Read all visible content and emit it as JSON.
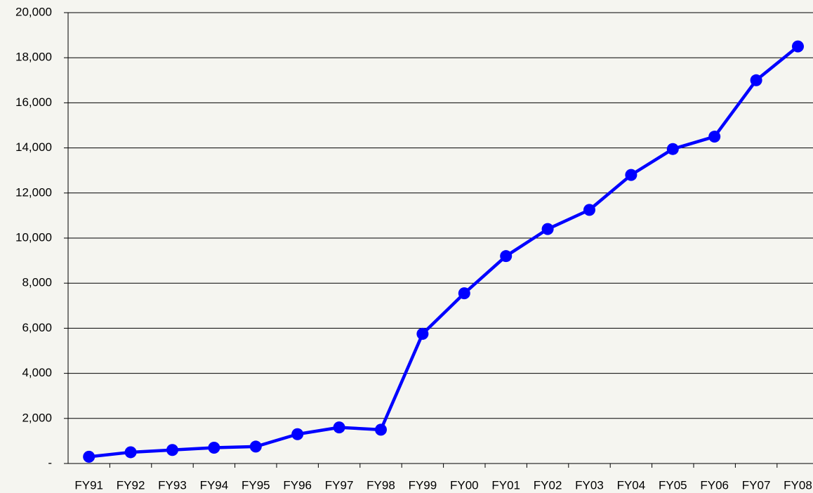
{
  "chart_data": {
    "type": "line",
    "categories": [
      "FY91",
      "FY92",
      "FY93",
      "FY94",
      "FY95",
      "FY96",
      "FY97",
      "FY98",
      "FY99",
      "FY00",
      "FY01",
      "FY02",
      "FY03",
      "FY04",
      "FY05",
      "FY06",
      "FY07",
      "FY08"
    ],
    "values": [
      300,
      500,
      600,
      700,
      750,
      1300,
      1600,
      1500,
      5750,
      7550,
      9200,
      10400,
      11250,
      12800,
      13950,
      14500,
      17000,
      18500
    ],
    "color": "#0000ff",
    "ylim": [
      0,
      20000
    ],
    "yticks": [
      {
        "value": 0,
        "label": "-"
      },
      {
        "value": 2000,
        "label": "2,000"
      },
      {
        "value": 4000,
        "label": "4,000"
      },
      {
        "value": 6000,
        "label": "6,000"
      },
      {
        "value": 8000,
        "label": "8,000"
      },
      {
        "value": 10000,
        "label": "10,000"
      },
      {
        "value": 12000,
        "label": "12,000"
      },
      {
        "value": 14000,
        "label": "14,000"
      },
      {
        "value": 16000,
        "label": "16,000"
      },
      {
        "value": 18000,
        "label": "18,000"
      },
      {
        "value": 20000,
        "label": "20,000"
      }
    ],
    "grid": true
  }
}
